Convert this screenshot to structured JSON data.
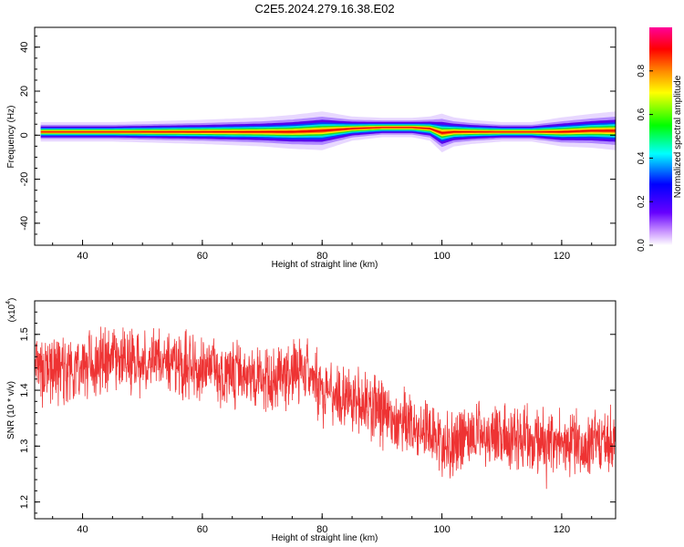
{
  "title": "C2E5.2024.279.16.38.E02",
  "chart_data": [
    {
      "type": "heatmap",
      "xlabel": "Height of straight line (km)",
      "ylabel": "Frequency (Hz)",
      "xlim": [
        32,
        129
      ],
      "ylim": [
        -50,
        49
      ],
      "x_ticks": [
        "40",
        "60",
        "80",
        "100",
        "120"
      ],
      "y_ticks": [
        "40",
        "20",
        "0",
        "-20",
        "-40"
      ],
      "colorbar": {
        "label": "Normalized spectral amplitude",
        "range": [
          0,
          1
        ],
        "ticks": [
          "0.0",
          "0.2",
          "0.4",
          "0.6",
          "0.8"
        ]
      },
      "band": {
        "description_free": true,
        "height_km": [
          33,
          45,
          60,
          70,
          75,
          80,
          85,
          90,
          95,
          98,
          100,
          102,
          105,
          110,
          115,
          120,
          125,
          129
        ],
        "center_hz": [
          1.5,
          1.5,
          1.5,
          1.5,
          1.5,
          2,
          3,
          3.5,
          3.5,
          3,
          1,
          1.5,
          1.5,
          1.5,
          1.5,
          1.5,
          2,
          2
        ],
        "half_width_hz": [
          2,
          2,
          2.5,
          3,
          3.5,
          4,
          2.5,
          2,
          2,
          2.5,
          4,
          3,
          2.5,
          2,
          2,
          3,
          3.5,
          4
        ]
      },
      "grid": false
    },
    {
      "type": "line",
      "xlabel": "Height of straight line (km)",
      "ylabel": "SNR (10 * v/v)",
      "multiplier": "(x10",
      "multiplier_exp": "4",
      "xlim": [
        32,
        129
      ],
      "ylim": [
        1.17,
        1.56
      ],
      "x_ticks": [
        "40",
        "60",
        "80",
        "100",
        "120"
      ],
      "y_ticks": [
        "1.5",
        "1.4",
        "1.3",
        "1.2"
      ],
      "color": "#ee3333",
      "trend": {
        "x": [
          32,
          40,
          45,
          50,
          55,
          60,
          65,
          70,
          75,
          77,
          80,
          85,
          90,
          95,
          100,
          105,
          110,
          115,
          120,
          125,
          129
        ],
        "y": [
          1.43,
          1.44,
          1.46,
          1.45,
          1.45,
          1.44,
          1.43,
          1.42,
          1.43,
          1.44,
          1.4,
          1.38,
          1.36,
          1.34,
          1.3,
          1.32,
          1.32,
          1.31,
          1.31,
          1.3,
          1.31
        ]
      },
      "grid": false
    }
  ]
}
